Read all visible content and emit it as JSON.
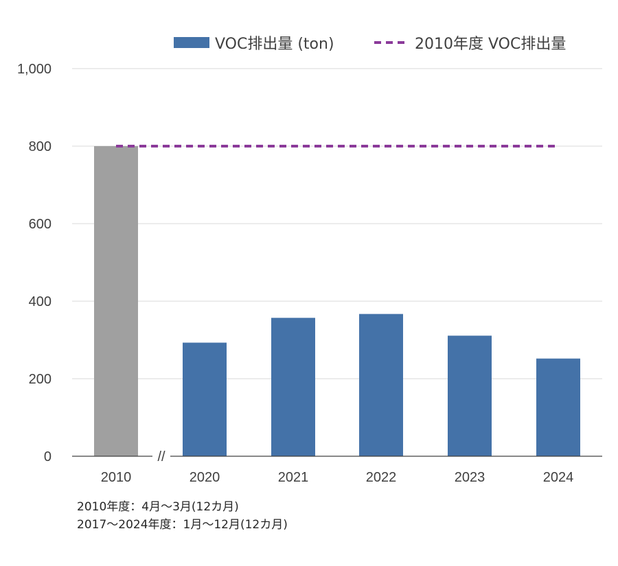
{
  "chart_data": {
    "type": "bar",
    "categories": [
      "2010",
      "2020",
      "2021",
      "2022",
      "2023",
      "2024"
    ],
    "series": [
      {
        "name": "VOC排出量 (ton)",
        "values": [
          800,
          293,
          357,
          367,
          311,
          252
        ],
        "colors": [
          "#a0a0a0",
          "#4472a8",
          "#4472a8",
          "#4472a8",
          "#4472a8",
          "#4472a8"
        ]
      },
      {
        "name": "2010年度 VOC排出量",
        "type": "line",
        "style": "dashed",
        "color": "#8b3a9a",
        "value": 800
      }
    ],
    "ylim": [
      0,
      1000
    ],
    "yticks": [
      "0",
      "200",
      "400",
      "600",
      "800",
      "1,000"
    ],
    "axis_break_marker": "//",
    "grid": true,
    "legend_position": "top"
  },
  "notes": [
    "2010年度：4月～3月(12カ月)",
    "2017～2024年度：1月～12月(12カ月)"
  ]
}
